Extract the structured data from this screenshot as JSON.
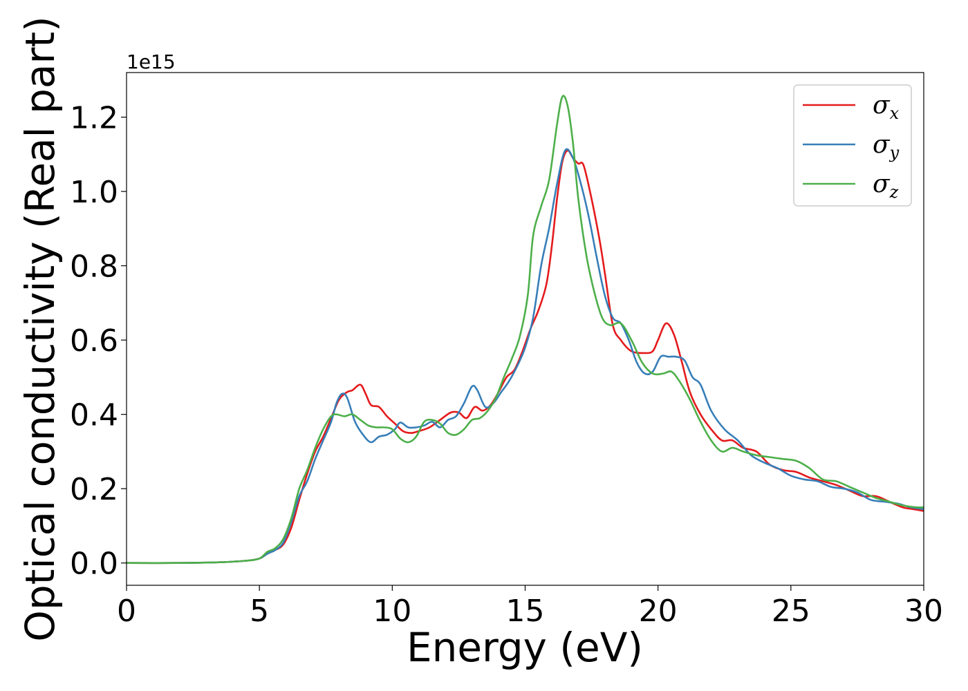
{
  "chart_data": {
    "type": "line",
    "title": "",
    "xlabel": "Energy (eV)",
    "ylabel": "Optical conductivity (Real part)",
    "y_offset_label": "1e15",
    "xlim": [
      0,
      30
    ],
    "ylim": [
      -0.06,
      1.32
    ],
    "xticks": [
      0,
      5,
      10,
      15,
      20,
      25,
      30
    ],
    "xtick_labels": [
      "0",
      "5",
      "10",
      "15",
      "20",
      "25",
      "30"
    ],
    "yticks": [
      0.0,
      0.2,
      0.4,
      0.6,
      0.8,
      1.0,
      1.2
    ],
    "ytick_labels": [
      "0.0",
      "0.2",
      "0.4",
      "0.6",
      "0.8",
      "1.0",
      "1.2"
    ],
    "grid": false,
    "legend_position": "top-right",
    "series": [
      {
        "name": "σx",
        "symbol": "σ",
        "subscript": "x",
        "color": "#e41a1c",
        "points": [
          [
            0,
            0
          ],
          [
            2,
            0
          ],
          [
            3.5,
            0.002
          ],
          [
            4.5,
            0.006
          ],
          [
            5,
            0.012
          ],
          [
            5.3,
            0.025
          ],
          [
            5.6,
            0.035
          ],
          [
            5.9,
            0.05
          ],
          [
            6.2,
            0.095
          ],
          [
            6.5,
            0.17
          ],
          [
            6.8,
            0.24
          ],
          [
            7.1,
            0.3
          ],
          [
            7.4,
            0.34
          ],
          [
            7.7,
            0.39
          ],
          [
            8,
            0.44
          ],
          [
            8.3,
            0.46
          ],
          [
            8.5,
            0.465
          ],
          [
            8.8,
            0.48
          ],
          [
            9.0,
            0.455
          ],
          [
            9.2,
            0.425
          ],
          [
            9.5,
            0.42
          ],
          [
            9.8,
            0.395
          ],
          [
            10.1,
            0.375
          ],
          [
            10.4,
            0.355
          ],
          [
            10.7,
            0.35
          ],
          [
            11.0,
            0.355
          ],
          [
            11.4,
            0.365
          ],
          [
            11.8,
            0.385
          ],
          [
            12.2,
            0.405
          ],
          [
            12.5,
            0.405
          ],
          [
            12.8,
            0.39
          ],
          [
            13.1,
            0.42
          ],
          [
            13.4,
            0.41
          ],
          [
            13.7,
            0.425
          ],
          [
            14.0,
            0.46
          ],
          [
            14.3,
            0.5
          ],
          [
            14.6,
            0.52
          ],
          [
            14.9,
            0.57
          ],
          [
            15.2,
            0.63
          ],
          [
            15.5,
            0.68
          ],
          [
            15.8,
            0.75
          ],
          [
            16.0,
            0.85
          ],
          [
            16.2,
            0.98
          ],
          [
            16.4,
            1.08
          ],
          [
            16.6,
            1.11
          ],
          [
            16.8,
            1.09
          ],
          [
            17.0,
            1.075
          ],
          [
            17.2,
            1.07
          ],
          [
            17.5,
            0.98
          ],
          [
            17.8,
            0.87
          ],
          [
            18.0,
            0.78
          ],
          [
            18.3,
            0.64
          ],
          [
            18.6,
            0.6
          ],
          [
            19.0,
            0.57
          ],
          [
            19.5,
            0.565
          ],
          [
            19.8,
            0.57
          ],
          [
            20.0,
            0.6
          ],
          [
            20.3,
            0.645
          ],
          [
            20.6,
            0.615
          ],
          [
            20.9,
            0.54
          ],
          [
            21.2,
            0.46
          ],
          [
            21.6,
            0.4
          ],
          [
            22.0,
            0.36
          ],
          [
            22.4,
            0.33
          ],
          [
            22.8,
            0.33
          ],
          [
            23.2,
            0.31
          ],
          [
            23.7,
            0.3
          ],
          [
            24.2,
            0.265
          ],
          [
            24.7,
            0.25
          ],
          [
            25.2,
            0.245
          ],
          [
            25.7,
            0.23
          ],
          [
            26.2,
            0.22
          ],
          [
            26.7,
            0.21
          ],
          [
            27.2,
            0.195
          ],
          [
            27.7,
            0.18
          ],
          [
            28.2,
            0.18
          ],
          [
            28.7,
            0.165
          ],
          [
            29.2,
            0.15
          ],
          [
            29.6,
            0.145
          ],
          [
            30,
            0.14
          ]
        ]
      },
      {
        "name": "σy",
        "symbol": "σ",
        "subscript": "y",
        "color": "#377eb8",
        "points": [
          [
            0,
            0
          ],
          [
            2,
            0
          ],
          [
            3.5,
            0.002
          ],
          [
            4.5,
            0.006
          ],
          [
            5,
            0.012
          ],
          [
            5.3,
            0.025
          ],
          [
            5.6,
            0.035
          ],
          [
            5.9,
            0.055
          ],
          [
            6.2,
            0.11
          ],
          [
            6.5,
            0.18
          ],
          [
            6.8,
            0.22
          ],
          [
            7.1,
            0.28
          ],
          [
            7.4,
            0.33
          ],
          [
            7.7,
            0.38
          ],
          [
            7.9,
            0.43
          ],
          [
            8.1,
            0.455
          ],
          [
            8.3,
            0.445
          ],
          [
            8.6,
            0.38
          ],
          [
            8.9,
            0.345
          ],
          [
            9.2,
            0.325
          ],
          [
            9.5,
            0.34
          ],
          [
            9.8,
            0.345
          ],
          [
            10.1,
            0.36
          ],
          [
            10.3,
            0.378
          ],
          [
            10.6,
            0.365
          ],
          [
            10.9,
            0.365
          ],
          [
            11.2,
            0.37
          ],
          [
            11.5,
            0.38
          ],
          [
            11.8,
            0.365
          ],
          [
            12.1,
            0.385
          ],
          [
            12.4,
            0.395
          ],
          [
            12.7,
            0.43
          ],
          [
            13.0,
            0.475
          ],
          [
            13.2,
            0.465
          ],
          [
            13.5,
            0.42
          ],
          [
            13.8,
            0.43
          ],
          [
            14.1,
            0.46
          ],
          [
            14.4,
            0.49
          ],
          [
            14.7,
            0.53
          ],
          [
            15.0,
            0.58
          ],
          [
            15.3,
            0.66
          ],
          [
            15.6,
            0.8
          ],
          [
            15.9,
            0.9
          ],
          [
            16.2,
            1.02
          ],
          [
            16.5,
            1.11
          ],
          [
            16.8,
            1.09
          ],
          [
            17.1,
            1.02
          ],
          [
            17.4,
            0.93
          ],
          [
            17.7,
            0.82
          ],
          [
            18.0,
            0.72
          ],
          [
            18.3,
            0.66
          ],
          [
            18.6,
            0.645
          ],
          [
            18.9,
            0.6
          ],
          [
            19.2,
            0.54
          ],
          [
            19.5,
            0.51
          ],
          [
            19.8,
            0.515
          ],
          [
            20.1,
            0.555
          ],
          [
            20.4,
            0.555
          ],
          [
            20.7,
            0.555
          ],
          [
            21.0,
            0.545
          ],
          [
            21.3,
            0.5
          ],
          [
            21.6,
            0.48
          ],
          [
            22.0,
            0.41
          ],
          [
            22.5,
            0.36
          ],
          [
            23.0,
            0.33
          ],
          [
            23.5,
            0.29
          ],
          [
            24.0,
            0.27
          ],
          [
            24.5,
            0.255
          ],
          [
            25.0,
            0.235
          ],
          [
            25.5,
            0.225
          ],
          [
            26.0,
            0.22
          ],
          [
            26.5,
            0.205
          ],
          [
            27.0,
            0.2
          ],
          [
            27.5,
            0.19
          ],
          [
            28.0,
            0.17
          ],
          [
            28.5,
            0.165
          ],
          [
            29.0,
            0.16
          ],
          [
            29.5,
            0.15
          ],
          [
            30,
            0.145
          ]
        ]
      },
      {
        "name": "σz",
        "symbol": "σ",
        "subscript": "z",
        "color": "#4daf4a",
        "points": [
          [
            0,
            0
          ],
          [
            2,
            0
          ],
          [
            3.5,
            0.002
          ],
          [
            4.5,
            0.006
          ],
          [
            5,
            0.012
          ],
          [
            5.3,
            0.03
          ],
          [
            5.6,
            0.04
          ],
          [
            5.9,
            0.065
          ],
          [
            6.2,
            0.12
          ],
          [
            6.5,
            0.2
          ],
          [
            6.8,
            0.25
          ],
          [
            7.1,
            0.31
          ],
          [
            7.4,
            0.36
          ],
          [
            7.7,
            0.395
          ],
          [
            7.9,
            0.4
          ],
          [
            8.2,
            0.395
          ],
          [
            8.5,
            0.4
          ],
          [
            8.8,
            0.385
          ],
          [
            9.1,
            0.37
          ],
          [
            9.4,
            0.365
          ],
          [
            9.7,
            0.365
          ],
          [
            10.0,
            0.36
          ],
          [
            10.3,
            0.335
          ],
          [
            10.6,
            0.325
          ],
          [
            10.9,
            0.34
          ],
          [
            11.2,
            0.38
          ],
          [
            11.5,
            0.385
          ],
          [
            11.8,
            0.375
          ],
          [
            12.1,
            0.35
          ],
          [
            12.4,
            0.345
          ],
          [
            12.7,
            0.36
          ],
          [
            13.0,
            0.385
          ],
          [
            13.3,
            0.39
          ],
          [
            13.6,
            0.41
          ],
          [
            13.9,
            0.445
          ],
          [
            14.2,
            0.5
          ],
          [
            14.5,
            0.55
          ],
          [
            14.8,
            0.61
          ],
          [
            15.1,
            0.72
          ],
          [
            15.3,
            0.88
          ],
          [
            15.6,
            0.96
          ],
          [
            15.9,
            1.03
          ],
          [
            16.2,
            1.18
          ],
          [
            16.4,
            1.255
          ],
          [
            16.6,
            1.23
          ],
          [
            16.8,
            1.13
          ],
          [
            17.0,
            0.98
          ],
          [
            17.3,
            0.83
          ],
          [
            17.6,
            0.73
          ],
          [
            17.9,
            0.66
          ],
          [
            18.2,
            0.64
          ],
          [
            18.6,
            0.645
          ],
          [
            19.0,
            0.6
          ],
          [
            19.4,
            0.54
          ],
          [
            19.8,
            0.51
          ],
          [
            20.2,
            0.51
          ],
          [
            20.5,
            0.515
          ],
          [
            20.8,
            0.49
          ],
          [
            21.2,
            0.44
          ],
          [
            21.6,
            0.38
          ],
          [
            22.0,
            0.33
          ],
          [
            22.4,
            0.3
          ],
          [
            22.8,
            0.31
          ],
          [
            23.2,
            0.3
          ],
          [
            23.7,
            0.29
          ],
          [
            24.2,
            0.285
          ],
          [
            24.7,
            0.28
          ],
          [
            25.2,
            0.275
          ],
          [
            25.7,
            0.255
          ],
          [
            26.2,
            0.225
          ],
          [
            26.7,
            0.22
          ],
          [
            27.2,
            0.205
          ],
          [
            27.7,
            0.19
          ],
          [
            28.2,
            0.175
          ],
          [
            28.7,
            0.165
          ],
          [
            29.2,
            0.155
          ],
          [
            29.7,
            0.15
          ],
          [
            30,
            0.15
          ]
        ]
      }
    ]
  }
}
